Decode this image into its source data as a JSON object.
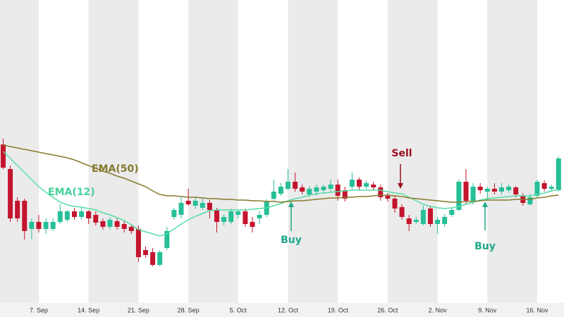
{
  "chart_data": {
    "type": "candlestick",
    "up_color": "#26bf98",
    "down_color": "#c4142e",
    "ylim": [
      20,
      450
    ],
    "xticks": [
      "7. Sep",
      "14. Sep",
      "21. Sep",
      "28. Sep",
      "5. Oct",
      "12. Oct",
      "19. Oct",
      "26. Oct",
      "2. Nov",
      "9. Nov",
      "16. Nov"
    ],
    "open": [
      245,
      210,
      165,
      165,
      125,
      135,
      125,
      125,
      135,
      138,
      150,
      142,
      150,
      145,
      136,
      128,
      136,
      132,
      128,
      125,
      95,
      92,
      74,
      98,
      142,
      145,
      165,
      158,
      155,
      162,
      152,
      135,
      135,
      145,
      150,
      135,
      140,
      145,
      168,
      175,
      182,
      192,
      184,
      174,
      178,
      180,
      182,
      188,
      180,
      185,
      195,
      185,
      188,
      184,
      172,
      168,
      156,
      140,
      135,
      132,
      154,
      132,
      132,
      145,
      152,
      192,
      165,
      185,
      178,
      182,
      178,
      180,
      184,
      172,
      160,
      172,
      190,
      182,
      180
    ],
    "high": [
      253,
      215,
      170,
      168,
      140,
      145,
      140,
      140,
      160,
      152,
      155,
      155,
      152,
      150,
      140,
      142,
      140,
      136,
      132,
      130,
      100,
      98,
      95,
      128,
      155,
      170,
      182,
      170,
      168,
      166,
      155,
      146,
      154,
      152,
      154,
      142,
      150,
      167,
      195,
      190,
      210,
      205,
      188,
      186,
      188,
      188,
      195,
      195,
      185,
      205,
      198,
      194,
      192,
      188,
      176,
      172,
      160,
      145,
      142,
      158,
      158,
      142,
      146,
      155,
      195,
      210,
      190,
      190,
      185,
      190,
      190,
      188,
      186,
      176,
      175,
      195,
      194,
      188,
      228
    ],
    "low": [
      210,
      135,
      135,
      110,
      110,
      120,
      118,
      122,
      132,
      135,
      138,
      138,
      132,
      130,
      124,
      124,
      124,
      120,
      118,
      78,
      84,
      72,
      72,
      95,
      138,
      140,
      158,
      154,
      152,
      140,
      120,
      130,
      132,
      140,
      128,
      120,
      132,
      142,
      165,
      172,
      180,
      178,
      174,
      170,
      172,
      176,
      178,
      165,
      164,
      180,
      180,
      182,
      180,
      165,
      164,
      148,
      138,
      122,
      132,
      130,
      128,
      118,
      128,
      142,
      150,
      160,
      160,
      175,
      165,
      174,
      174,
      176,
      170,
      158,
      158,
      170,
      178,
      178,
      178
    ],
    "close": [
      212,
      140,
      140,
      122,
      135,
      125,
      135,
      135,
      150,
      150,
      142,
      150,
      140,
      134,
      128,
      138,
      128,
      125,
      122,
      85,
      88,
      74,
      92,
      122,
      152,
      162,
      160,
      165,
      162,
      152,
      135,
      142,
      150,
      150,
      132,
      128,
      145,
      164,
      178,
      185,
      192,
      182,
      178,
      182,
      184,
      185,
      188,
      172,
      168,
      195,
      185,
      190,
      184,
      170,
      168,
      154,
      142,
      132,
      138,
      152,
      132,
      138,
      142,
      152,
      192,
      165,
      185,
      180,
      182,
      178,
      184,
      185,
      174,
      162,
      170,
      192,
      182,
      185,
      225
    ],
    "series": [
      {
        "name": "EMA(12)",
        "color": "#55dda6",
        "values": [
          235,
          225,
          215,
          205,
          195,
          185,
          177,
          170,
          163,
          159,
          157,
          156,
          154,
          152,
          148,
          145,
          141,
          137,
          131,
          124,
          121,
          118,
          115,
          118,
          125,
          132,
          138,
          143,
          147,
          151,
          152,
          152,
          152,
          152,
          152,
          153,
          154,
          155,
          158,
          161,
          165,
          168,
          170,
          173,
          175,
          176,
          177,
          178,
          179,
          180,
          180,
          180,
          180,
          180,
          178,
          176,
          175,
          170,
          165,
          160,
          157,
          155,
          154,
          155,
          157,
          160,
          163,
          166,
          168,
          169,
          170,
          171,
          172,
          172,
          172,
          174,
          176,
          179,
          181
        ]
      },
      {
        "name": "EMA(50)",
        "color": "#857a2c",
        "values": [
          244,
          242,
          240,
          238,
          236,
          234,
          232,
          230,
          228,
          226,
          223,
          219,
          215,
          211,
          207,
          204,
          200,
          197,
          193,
          189,
          185,
          179,
          174,
          172,
          172,
          171,
          170,
          170,
          169,
          168,
          168,
          167,
          167,
          166,
          166,
          165,
          165,
          164,
          164,
          163,
          164,
          165,
          165,
          166,
          167,
          168,
          169,
          169,
          170,
          170,
          171,
          171,
          172,
          173,
          173,
          172,
          171,
          169,
          168,
          167,
          166,
          165,
          164,
          163,
          163,
          164,
          164,
          165,
          166,
          166,
          166,
          166,
          167,
          167,
          167,
          169,
          170,
          172,
          173
        ]
      }
    ],
    "annotations": [
      {
        "text": "Buy",
        "color": "#1fa88a"
      },
      {
        "text": "Sell",
        "color": "#9b0f1f"
      },
      {
        "text": "Buy",
        "color": "#1fa88a"
      }
    ]
  }
}
